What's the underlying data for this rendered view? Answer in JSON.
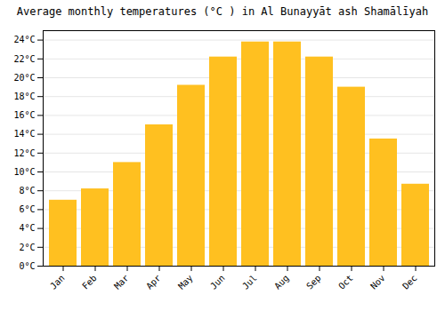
{
  "chart_data": {
    "type": "bar",
    "title": "Average monthly temperatures (°C ) in Al Bunayyāt ash Shamālīyah",
    "categories": [
      "Jan",
      "Feb",
      "Mar",
      "Apr",
      "May",
      "Jun",
      "Jul",
      "Aug",
      "Sep",
      "Oct",
      "Nov",
      "Dec"
    ],
    "values": [
      7,
      8.2,
      11,
      15,
      19.2,
      22.2,
      23.8,
      23.8,
      22.2,
      19,
      13.5,
      8.7
    ],
    "color": "#FFC020",
    "ylim": [
      0,
      25
    ],
    "yticks": [
      {
        "value": 0,
        "label": "0°C"
      },
      {
        "value": 2,
        "label": "2°C"
      },
      {
        "value": 4,
        "label": "4°C"
      },
      {
        "value": 6,
        "label": "6°C"
      },
      {
        "value": 8,
        "label": "8°C"
      },
      {
        "value": 10,
        "label": "10°C"
      },
      {
        "value": 12,
        "label": "12°C"
      },
      {
        "value": 14,
        "label": "14°C"
      },
      {
        "value": 16,
        "label": "16°C"
      },
      {
        "value": 18,
        "label": "18°C"
      },
      {
        "value": 20,
        "label": "20°C"
      },
      {
        "value": 22,
        "label": "22°C"
      },
      {
        "value": 24,
        "label": "24°C"
      }
    ],
    "grid": true
  }
}
